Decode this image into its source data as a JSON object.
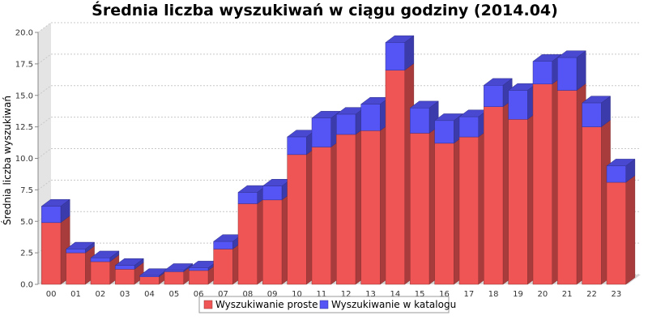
{
  "chart_data": {
    "type": "bar",
    "stacked": true,
    "three_d": true,
    "title": "Średnia liczba wyszukiwań w ciągu godziny (2014.04)",
    "xlabel": "",
    "ylabel": "Średnia liczba wyszukiwań",
    "ylim": [
      0,
      20
    ],
    "yticks": [
      "0.0",
      "2.5",
      "5.0",
      "7.5",
      "10.0",
      "12.5",
      "15.0",
      "17.5",
      "20.0"
    ],
    "grid": true,
    "legend_position": "bottom",
    "categories": [
      "00",
      "01",
      "02",
      "03",
      "04",
      "05",
      "06",
      "07",
      "08",
      "09",
      "10",
      "11",
      "12",
      "13",
      "14",
      "15",
      "16",
      "17",
      "18",
      "19",
      "20",
      "21",
      "22",
      "23"
    ],
    "series": [
      {
        "name": "Wyszukiwanie proste",
        "color": "#f05555",
        "values": [
          4.9,
          2.5,
          1.8,
          1.2,
          0.6,
          1.0,
          1.1,
          2.8,
          6.4,
          6.7,
          10.3,
          10.9,
          11.9,
          12.2,
          17.0,
          12.0,
          11.2,
          11.7,
          14.1,
          13.1,
          15.9,
          15.4,
          12.5,
          8.1
        ]
      },
      {
        "name": "Wyszukiwanie w katalogu",
        "color": "#5555f5",
        "values": [
          1.3,
          0.3,
          0.3,
          0.3,
          0.1,
          0.1,
          0.2,
          0.6,
          0.9,
          1.1,
          1.4,
          2.3,
          1.6,
          2.1,
          2.2,
          2.0,
          1.8,
          1.6,
          1.7,
          2.3,
          1.8,
          2.6,
          1.9,
          1.3
        ]
      }
    ]
  }
}
